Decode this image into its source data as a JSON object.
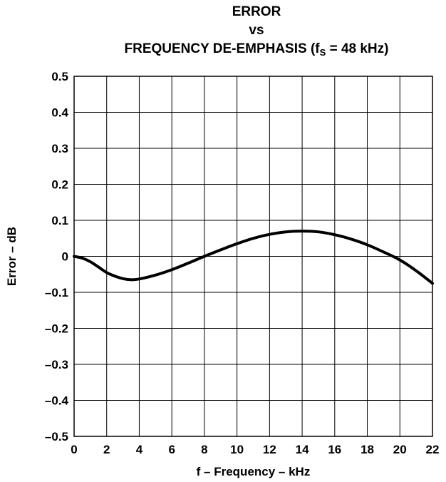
{
  "chart_data": {
    "type": "line",
    "title_line1": "ERROR",
    "title_line2": "vs",
    "title_line3_prefix": "FREQUENCY DE-EMPHASIS (f",
    "title_line3_sub": "S",
    "title_line3_suffix": " = 48 kHz)",
    "xlabel": "f – Frequency – kHz",
    "ylabel": "Error – dB",
    "xlim": [
      0,
      22
    ],
    "ylim": [
      -0.5,
      0.5
    ],
    "x_ticks": [
      "0",
      "2",
      "4",
      "6",
      "8",
      "10",
      "12",
      "14",
      "16",
      "18",
      "20",
      "22"
    ],
    "y_ticks": [
      "0.5",
      "0.4",
      "0.3",
      "0.2",
      "0.1",
      "0",
      "–0.1",
      "–0.2",
      "–0.3",
      "–0.4",
      "–0.5"
    ],
    "grid": true,
    "series": [
      {
        "x": [
          0,
          0.5,
          1,
          1.5,
          2,
          2.5,
          3,
          3.5,
          4,
          5,
          6,
          7,
          8,
          9,
          10,
          11,
          12,
          13,
          14,
          15,
          16,
          17,
          18,
          19,
          20,
          21,
          22
        ],
        "y": [
          0.0,
          -0.005,
          -0.015,
          -0.03,
          -0.045,
          -0.055,
          -0.062,
          -0.065,
          -0.063,
          -0.052,
          -0.037,
          -0.019,
          0.0,
          0.018,
          0.035,
          0.05,
          0.061,
          0.068,
          0.07,
          0.068,
          0.06,
          0.048,
          0.032,
          0.012,
          -0.01,
          -0.04,
          -0.075
        ]
      }
    ]
  }
}
